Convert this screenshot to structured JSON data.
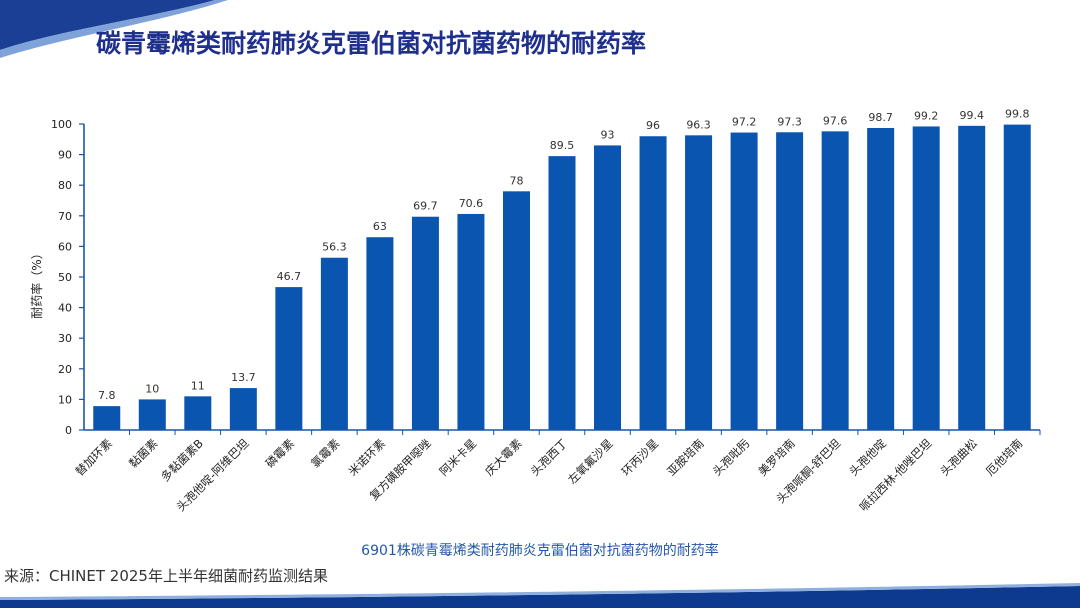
{
  "page": {
    "title": "碳青霉烯类耐药肺炎克雷伯菌对抗菌药物的耐药率",
    "caption": "6901株碳青霉烯类耐药肺炎克雷伯菌对抗菌药物的耐药率",
    "source": "来源：CHINET 2025年上半年细菌耐药监测结果"
  },
  "colors": {
    "bar": "#0a55b0",
    "axis": "#1a55a8",
    "title": "#1f2f8c",
    "caption": "#2457a8",
    "band": "#0d3a8e"
  },
  "chart_data": {
    "type": "bar",
    "title": "碳青霉烯类耐药肺炎克雷伯菌对抗菌药物的耐药率",
    "xlabel": "",
    "ylabel": "耐药率（%）",
    "ylim": [
      0,
      100
    ],
    "yticks": [
      0,
      10,
      20,
      30,
      40,
      50,
      60,
      70,
      80,
      90,
      100
    ],
    "grid": false,
    "categories": [
      "替加环素",
      "黏菌素",
      "多黏菌素B",
      "头孢他啶-阿维巴坦",
      "磷霉素",
      "氯霉素",
      "米诺环素",
      "复方磺胺甲噁唑",
      "阿米卡星",
      "庆大霉素",
      "头孢西丁",
      "左氧氟沙星",
      "环丙沙星",
      "亚胺培南",
      "头孢吡肟",
      "美罗培南",
      "头孢哌酮-舒巴坦",
      "头孢他啶",
      "哌拉西林-他唑巴坦",
      "头孢曲松",
      "厄他培南"
    ],
    "values": [
      7.8,
      10,
      11,
      13.7,
      46.7,
      56.3,
      63,
      69.7,
      70.6,
      78,
      89.5,
      93,
      96,
      96.3,
      97.2,
      97.3,
      97.6,
      98.7,
      99.2,
      99.4,
      99.8
    ],
    "value_labels": [
      "7.8",
      "10",
      "11",
      "13.7",
      "46.7",
      "56.3",
      "63",
      "69.7",
      "70.6",
      "78",
      "89.5",
      "93",
      "96",
      "96.3",
      "97.2",
      "97.3",
      "97.6",
      "98.7",
      "99.2",
      "99.4",
      "99.8"
    ]
  }
}
